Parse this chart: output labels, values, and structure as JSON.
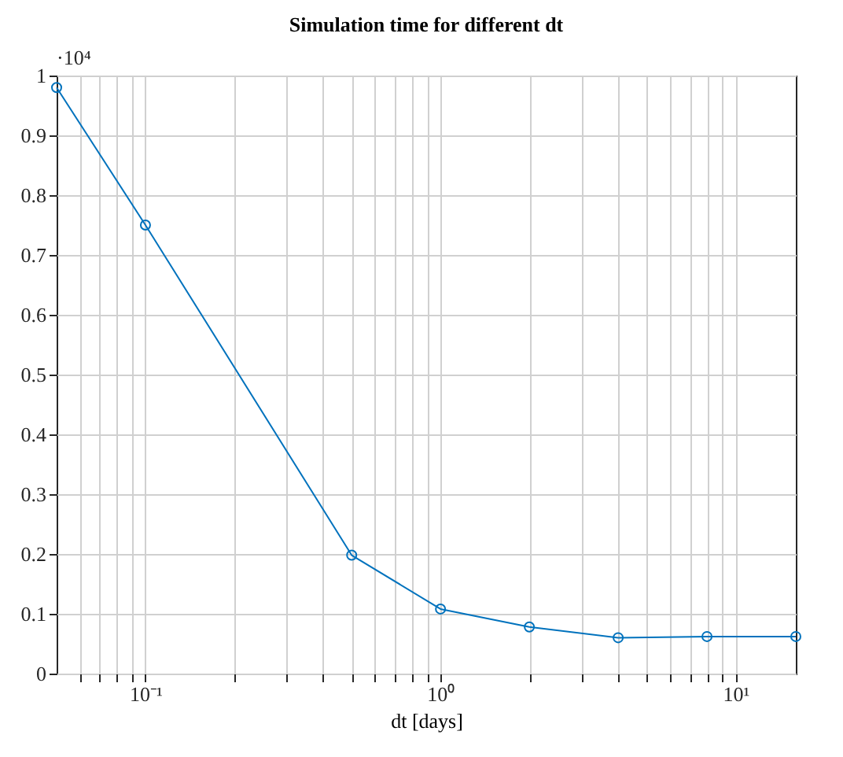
{
  "chart_data": {
    "type": "line",
    "title": "Simulation time for different dt",
    "xlabel": "dt [days]",
    "annotations": [
      "·10⁴"
    ],
    "x": [
      0.05,
      0.1,
      0.5,
      1,
      2,
      4,
      8,
      16
    ],
    "series": [
      {
        "color": "#0072bd",
        "values": [
          0.98,
          0.75,
          0.198,
          0.108,
          0.078,
          0.06,
          0.062,
          0.062
        ]
      }
    ],
    "log": "x",
    "xlim": [
      0.05,
      16
    ],
    "ylim": [
      0,
      1
    ],
    "xticks": [
      {
        "value": 0.06,
        "label": null
      },
      {
        "value": 0.07,
        "label": null
      },
      {
        "value": 0.08,
        "label": null
      },
      {
        "value": 0.09,
        "label": null
      },
      {
        "value": 0.1,
        "label": "10⁻¹"
      },
      {
        "value": 0.2,
        "label": null
      },
      {
        "value": 0.3,
        "label": null
      },
      {
        "value": 0.4,
        "label": null
      },
      {
        "value": 0.5,
        "label": null
      },
      {
        "value": 0.6,
        "label": null
      },
      {
        "value": 0.7,
        "label": null
      },
      {
        "value": 0.8,
        "label": null
      },
      {
        "value": 0.9,
        "label": null
      },
      {
        "value": 1,
        "label": "10⁰"
      },
      {
        "value": 2,
        "label": null
      },
      {
        "value": 3,
        "label": null
      },
      {
        "value": 4,
        "label": null
      },
      {
        "value": 5,
        "label": null
      },
      {
        "value": 6,
        "label": null
      },
      {
        "value": 7,
        "label": null
      },
      {
        "value": 8,
        "label": null
      },
      {
        "value": 9,
        "label": null
      },
      {
        "value": 10,
        "label": "10¹"
      }
    ],
    "yticks": [
      0,
      0.1,
      0.2,
      0.3,
      0.4,
      0.5,
      0.6,
      0.7,
      0.8,
      0.9,
      1
    ],
    "grid": true,
    "marker": "circle",
    "line_style": "solid"
  }
}
